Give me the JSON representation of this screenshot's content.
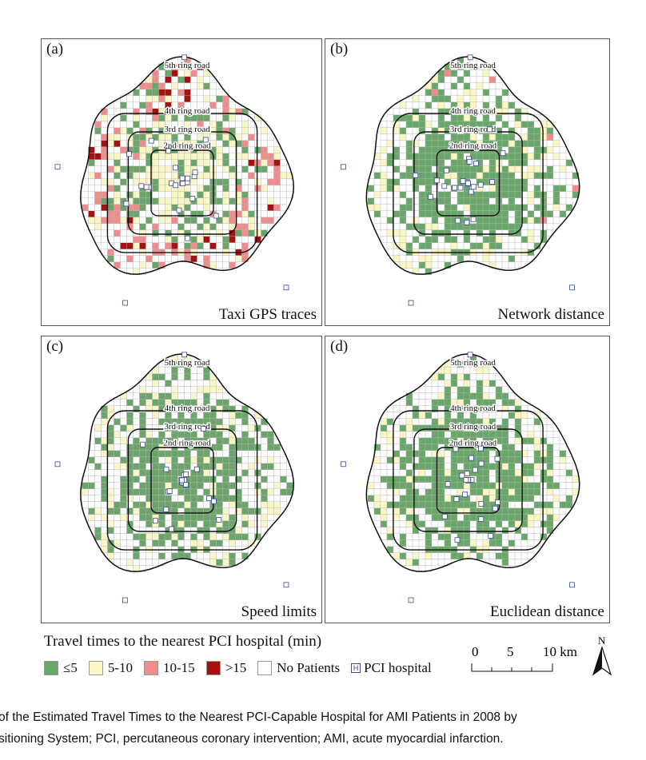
{
  "panels": [
    {
      "label": "(a)",
      "title": "Taxi GPS traces",
      "mode": "taxi"
    },
    {
      "label": "(b)",
      "title": "Network distance",
      "mode": "network"
    },
    {
      "label": "(c)",
      "title": "Speed limits",
      "mode": "speed"
    },
    {
      "label": "(d)",
      "title": "Euclidean distance",
      "mode": "euclid"
    }
  ],
  "ring_labels": [
    "5th ring road",
    "4th ring road",
    "3rd ring road",
    "2nd ring road"
  ],
  "legend": {
    "title": "Travel times to the nearest PCI hospital (min)",
    "items": [
      {
        "label": "≤5",
        "color": "#6aa66a"
      },
      {
        "label": "5-10",
        "color": "#fbf7c4"
      },
      {
        "label": "10-15",
        "color": "#f08c8c"
      },
      {
        "label": ">15",
        "color": "#a80f0f"
      },
      {
        "label": "No Patients",
        "color": "#ffffff"
      }
    ],
    "hospital_label": "PCI hospital",
    "hospital_glyph": "H"
  },
  "scale_bar": {
    "ticks": [
      "0",
      "5",
      "10 km"
    ]
  },
  "north_arrow": {
    "label": "N"
  },
  "caption": {
    "line1": "of the Estimated Travel Times to the Nearest PCI-Capable Hospital for AMI Patients in 2008 by",
    "line2": "sitioning System; PCI, percutaneous coronary intervention; AMI, acute myocardial infarction."
  }
}
